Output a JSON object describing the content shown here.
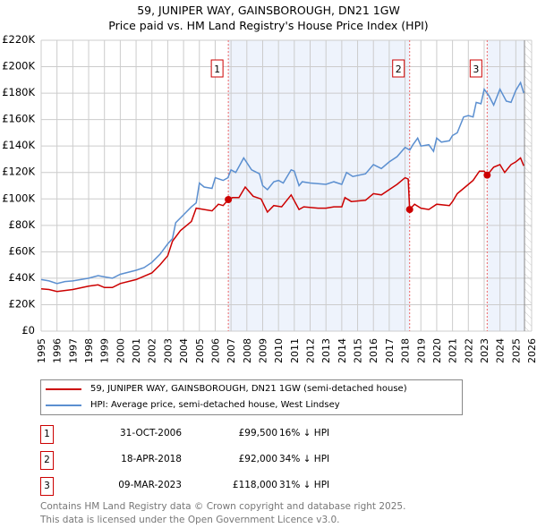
{
  "header": {
    "title": "59, JUNIPER WAY, GAINSBOROUGH, DN21 1GW",
    "subtitle": "Price paid vs. HM Land Registry's House Price Index (HPI)"
  },
  "chart_data": {
    "type": "line",
    "title": "59, JUNIPER WAY, GAINSBOROUGH, DN21 1GW — Price paid vs. HM Land Registry's House Price Index (HPI)",
    "xlim": [
      1995,
      2026
    ],
    "ylim": [
      0,
      220000
    ],
    "x_ticks": [
      "1995",
      "1996",
      "1997",
      "1998",
      "1999",
      "2000",
      "2001",
      "2002",
      "2003",
      "2004",
      "2005",
      "2006",
      "2007",
      "2008",
      "2009",
      "2010",
      "2011",
      "2012",
      "2013",
      "2014",
      "2015",
      "2016",
      "2017",
      "2018",
      "2019",
      "2020",
      "2021",
      "2022",
      "2023",
      "2024",
      "2025",
      "2026"
    ],
    "y_ticks": [
      {
        "v": 0,
        "label": "£0"
      },
      {
        "v": 20000,
        "label": "£20K"
      },
      {
        "v": 40000,
        "label": "£40K"
      },
      {
        "v": 60000,
        "label": "£60K"
      },
      {
        "v": 80000,
        "label": "£80K"
      },
      {
        "v": 100000,
        "label": "£100K"
      },
      {
        "v": 120000,
        "label": "£120K"
      },
      {
        "v": 140000,
        "label": "£140K"
      },
      {
        "v": 160000,
        "label": "£160K"
      },
      {
        "v": 180000,
        "label": "£180K"
      },
      {
        "v": 200000,
        "label": "£200K"
      },
      {
        "v": 220000,
        "label": "£220K"
      }
    ],
    "grid": true,
    "colors": {
      "property": "#cc0000",
      "hpi": "#5b8fd0",
      "shade": "#eef3fc"
    },
    "series": [
      {
        "name": "59, JUNIPER WAY, GAINSBOROUGH, DN21 1GW (semi-detached house)",
        "color": "#cc0000",
        "points": [
          [
            1995,
            32
          ],
          [
            1995.5,
            31.5
          ],
          [
            1996,
            30
          ],
          [
            1997,
            31.5
          ],
          [
            1998,
            34
          ],
          [
            1998.6,
            35
          ],
          [
            1999,
            33
          ],
          [
            1999.5,
            33
          ],
          [
            2000,
            36
          ],
          [
            2001,
            39
          ],
          [
            2002,
            44
          ],
          [
            2002.5,
            50
          ],
          [
            2003,
            57
          ],
          [
            2003.3,
            68
          ],
          [
            2003.8,
            76
          ],
          [
            2004.5,
            83
          ],
          [
            2004.8,
            93
          ],
          [
            2005.3,
            92
          ],
          [
            2005.8,
            91
          ],
          [
            2006.2,
            96
          ],
          [
            2006.5,
            95
          ],
          [
            2006.83,
            99.5
          ],
          [
            2007.1,
            101
          ],
          [
            2007.5,
            101
          ],
          [
            2007.9,
            109
          ],
          [
            2008.4,
            102
          ],
          [
            2008.9,
            100
          ],
          [
            2009.3,
            90
          ],
          [
            2009.7,
            95
          ],
          [
            2010.2,
            94
          ],
          [
            2010.8,
            103
          ],
          [
            2011.3,
            92
          ],
          [
            2011.6,
            94
          ],
          [
            2012.5,
            93
          ],
          [
            2013,
            93
          ],
          [
            2013.5,
            94
          ],
          [
            2014,
            94
          ],
          [
            2014.2,
            101
          ],
          [
            2014.6,
            98
          ],
          [
            2015.5,
            99
          ],
          [
            2016,
            104
          ],
          [
            2016.5,
            103
          ],
          [
            2017,
            107
          ],
          [
            2017.5,
            111
          ],
          [
            2018,
            116
          ],
          [
            2018.2,
            115
          ],
          [
            2018.29,
            92
          ],
          [
            2018.6,
            96
          ],
          [
            2019,
            93
          ],
          [
            2019.5,
            92
          ],
          [
            2020,
            96
          ],
          [
            2020.8,
            95
          ],
          [
            2021,
            98
          ],
          [
            2021.3,
            104
          ],
          [
            2021.8,
            109
          ],
          [
            2022.3,
            114
          ],
          [
            2022.7,
            121
          ],
          [
            2023,
            121
          ],
          [
            2023.19,
            118
          ],
          [
            2023.6,
            124
          ],
          [
            2024,
            126
          ],
          [
            2024.3,
            120
          ],
          [
            2024.7,
            126
          ],
          [
            2025,
            128
          ],
          [
            2025.3,
            131
          ],
          [
            2025.5,
            125
          ]
        ]
      },
      {
        "name": "HPI: Average price, semi-detached house, West Lindsey",
        "color": "#5b8fd0",
        "points": [
          [
            1995,
            39
          ],
          [
            1995.5,
            38
          ],
          [
            1996,
            36
          ],
          [
            1996.5,
            37.5
          ],
          [
            1997,
            38
          ],
          [
            1998,
            40
          ],
          [
            1998.6,
            42
          ],
          [
            1999,
            41
          ],
          [
            1999.5,
            40
          ],
          [
            2000,
            43
          ],
          [
            2001,
            46
          ],
          [
            2001.5,
            48
          ],
          [
            2002,
            52
          ],
          [
            2002.5,
            58
          ],
          [
            2003,
            66
          ],
          [
            2003.3,
            70
          ],
          [
            2003.5,
            82
          ],
          [
            2004,
            88
          ],
          [
            2004.5,
            94
          ],
          [
            2004.8,
            97
          ],
          [
            2005,
            112
          ],
          [
            2005.3,
            109
          ],
          [
            2005.8,
            108
          ],
          [
            2006,
            116
          ],
          [
            2006.5,
            114
          ],
          [
            2006.8,
            116
          ],
          [
            2007,
            122
          ],
          [
            2007.3,
            120
          ],
          [
            2007.8,
            131
          ],
          [
            2008.3,
            122
          ],
          [
            2008.8,
            119
          ],
          [
            2009,
            110
          ],
          [
            2009.3,
            107
          ],
          [
            2009.7,
            113
          ],
          [
            2010,
            114
          ],
          [
            2010.3,
            112
          ],
          [
            2010.8,
            122
          ],
          [
            2011,
            121
          ],
          [
            2011.3,
            110
          ],
          [
            2011.5,
            113
          ],
          [
            2012,
            112
          ],
          [
            2013,
            111
          ],
          [
            2013.5,
            113
          ],
          [
            2014,
            111
          ],
          [
            2014.3,
            120
          ],
          [
            2014.7,
            117
          ],
          [
            2015.5,
            119
          ],
          [
            2016,
            126
          ],
          [
            2016.5,
            123
          ],
          [
            2017,
            128
          ],
          [
            2017.5,
            132
          ],
          [
            2018,
            139
          ],
          [
            2018.3,
            137
          ],
          [
            2018.5,
            141
          ],
          [
            2018.8,
            146
          ],
          [
            2019,
            140
          ],
          [
            2019.5,
            141
          ],
          [
            2019.8,
            136
          ],
          [
            2020,
            146
          ],
          [
            2020.3,
            143
          ],
          [
            2020.8,
            144
          ],
          [
            2021,
            148
          ],
          [
            2021.3,
            150
          ],
          [
            2021.7,
            162
          ],
          [
            2022,
            163
          ],
          [
            2022.3,
            162
          ],
          [
            2022.5,
            173
          ],
          [
            2022.8,
            172
          ],
          [
            2023,
            183
          ],
          [
            2023.3,
            178
          ],
          [
            2023.6,
            171
          ],
          [
            2024,
            183
          ],
          [
            2024.4,
            174
          ],
          [
            2024.7,
            173
          ],
          [
            2025,
            182
          ],
          [
            2025.3,
            188
          ],
          [
            2025.5,
            180
          ]
        ]
      }
    ],
    "units": "thousands GBP",
    "sales": [
      {
        "label": "1",
        "x": 2006.83,
        "y": 99.5
      },
      {
        "label": "2",
        "x": 2018.29,
        "y": 92
      },
      {
        "label": "3",
        "x": 2023.19,
        "y": 118
      }
    ],
    "data_end": 2025.55
  },
  "legend": {
    "property": "59, JUNIPER WAY, GAINSBOROUGH, DN21 1GW (semi-detached house)",
    "hpi": "HPI: Average price, semi-detached house, West Lindsey"
  },
  "transactions": [
    {
      "num": "1",
      "date": "31-OCT-2006",
      "price": "£99,500",
      "hpi": "16% ↓ HPI"
    },
    {
      "num": "2",
      "date": "18-APR-2018",
      "price": "£92,000",
      "hpi": "34% ↓ HPI"
    },
    {
      "num": "3",
      "date": "09-MAR-2023",
      "price": "£118,000",
      "hpi": "31% ↓ HPI"
    }
  ],
  "footer": {
    "line1": "Contains HM Land Registry data © Crown copyright and database right 2025.",
    "line2": "This data is licensed under the Open Government Licence v3.0."
  }
}
